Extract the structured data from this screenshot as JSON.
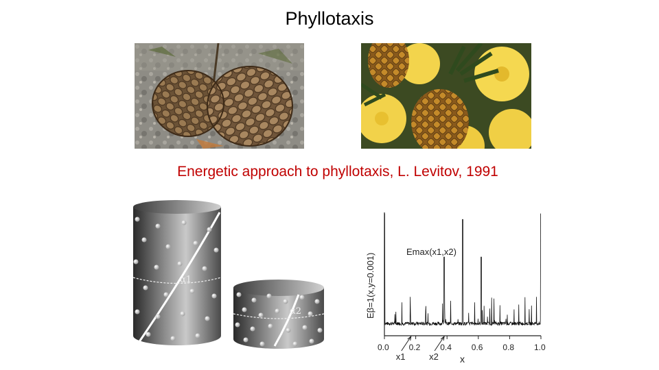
{
  "slide": {
    "title": "Phyllotaxis",
    "subtitle": "Energetic approach to phyllotaxis, L. Levitov, 1991"
  },
  "figure_cylinders": {
    "labels": [
      "α1",
      "α2"
    ]
  },
  "chart_data": {
    "type": "line",
    "xlabel": "x",
    "ylabel": "Eβ=1(x,y=0.001)",
    "xlim": [
      0.0,
      1.0
    ],
    "x_ticks": [
      "0.0",
      "0.2",
      "0.4",
      "0.6",
      "0.8",
      "1.0"
    ],
    "annotation": "Emax(x1,x2)",
    "markers": [
      {
        "label": "x1",
        "x": 0.17
      },
      {
        "label": "x2",
        "x": 0.382
      }
    ],
    "grid": false,
    "peaks": [
      {
        "x": 0.0,
        "y": 1.0
      },
      {
        "x": 0.382,
        "y": 0.62
      },
      {
        "x": 0.5,
        "y": 0.95
      },
      {
        "x": 0.618,
        "y": 0.62
      },
      {
        "x": 1.0,
        "y": 1.0
      }
    ]
  },
  "colors": {
    "title": "#000000",
    "subtitle": "#c00000",
    "plot_line": "#111111"
  }
}
